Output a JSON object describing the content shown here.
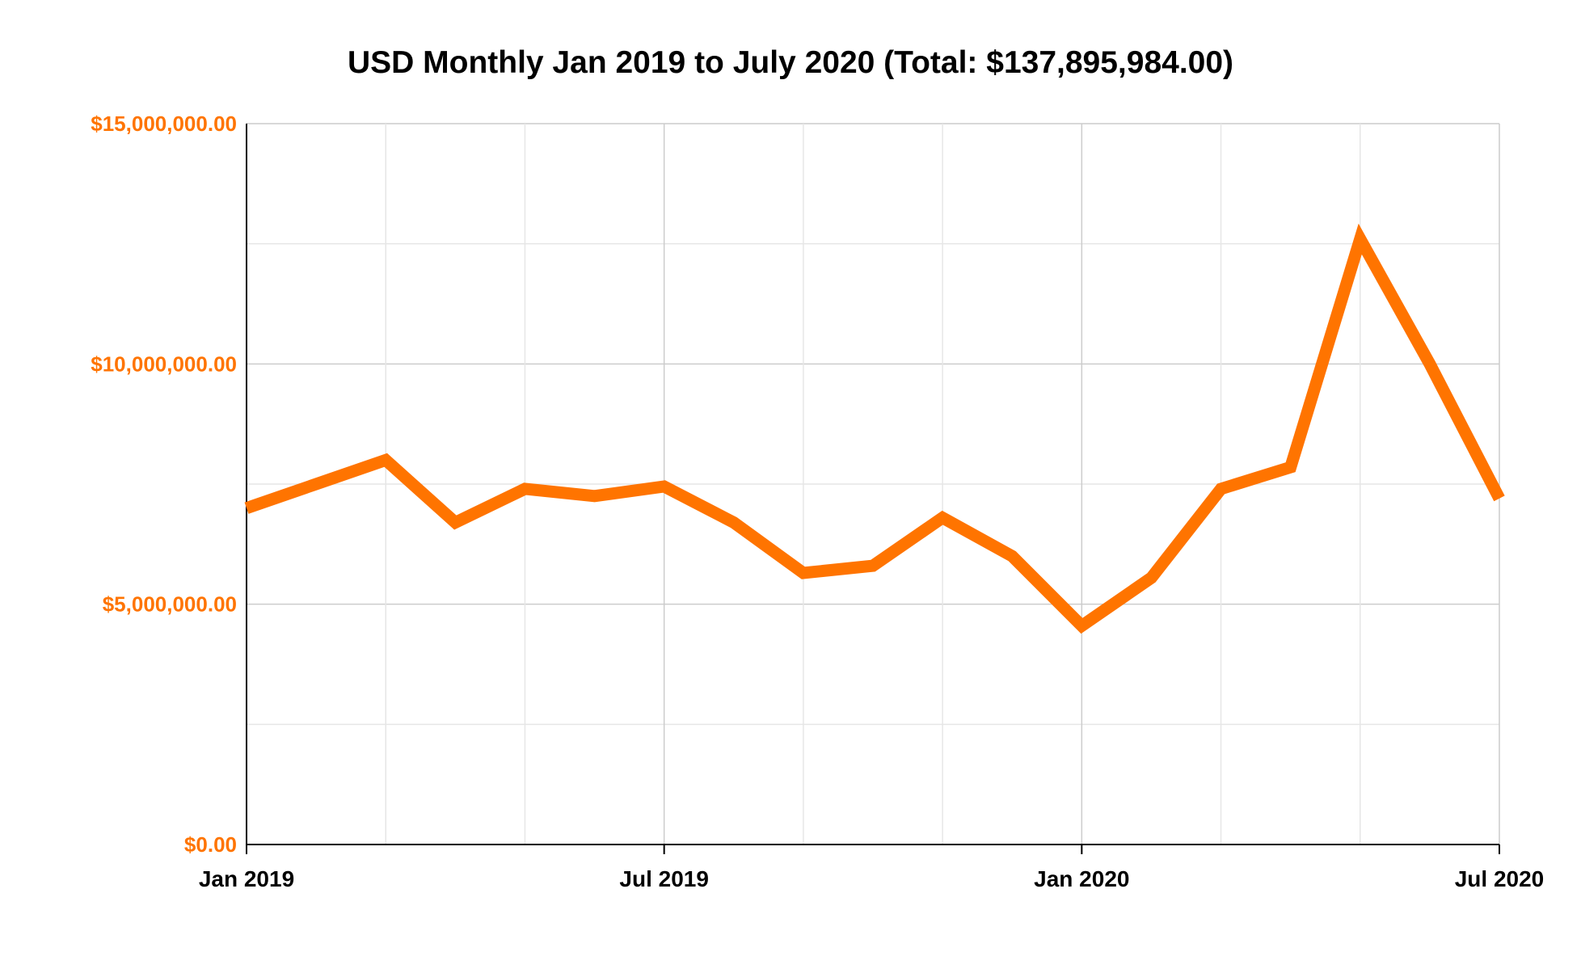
{
  "chart_data": {
    "type": "line",
    "title": "USD Monthly Jan 2019 to July 2020 (Total: $137,895,984.00)",
    "xlabel": "",
    "ylabel": "",
    "ylim": [
      0,
      15000000
    ],
    "y_ticks": [
      {
        "value": 0,
        "label": "$0.00"
      },
      {
        "value": 5000000,
        "label": "$5,000,000.00"
      },
      {
        "value": 10000000,
        "label": "$10,000,000.00"
      },
      {
        "value": 15000000,
        "label": "$15,000,000.00"
      }
    ],
    "x_ticks": [
      {
        "value": "2019-01",
        "label": "Jan 2019"
      },
      {
        "value": "2019-07",
        "label": "Jul 2019"
      },
      {
        "value": "2020-01",
        "label": "Jan 2020"
      },
      {
        "value": "2020-07",
        "label": "Jul 2020"
      }
    ],
    "grid": true,
    "legend": "none",
    "colors": {
      "line": "#FF7400",
      "y_tick_text": "#FF7400",
      "grid": "#D9D9D9",
      "axis": "#000000"
    },
    "x": [
      "2019-01",
      "2019-02",
      "2019-03",
      "2019-04",
      "2019-05",
      "2019-06",
      "2019-07",
      "2019-08",
      "2019-09",
      "2019-10",
      "2019-11",
      "2019-12",
      "2020-01",
      "2020-02",
      "2020-03",
      "2020-04",
      "2020-05",
      "2020-06",
      "2020-07"
    ],
    "series": [
      {
        "name": "",
        "values": [
          7000000,
          7500000,
          8000000,
          6700000,
          7400000,
          7250000,
          7450000,
          6700000,
          5650000,
          5800000,
          6800000,
          6000000,
          4550000,
          5550000,
          7400000,
          7850000,
          12600000,
          10000000,
          7200000
        ]
      }
    ]
  }
}
